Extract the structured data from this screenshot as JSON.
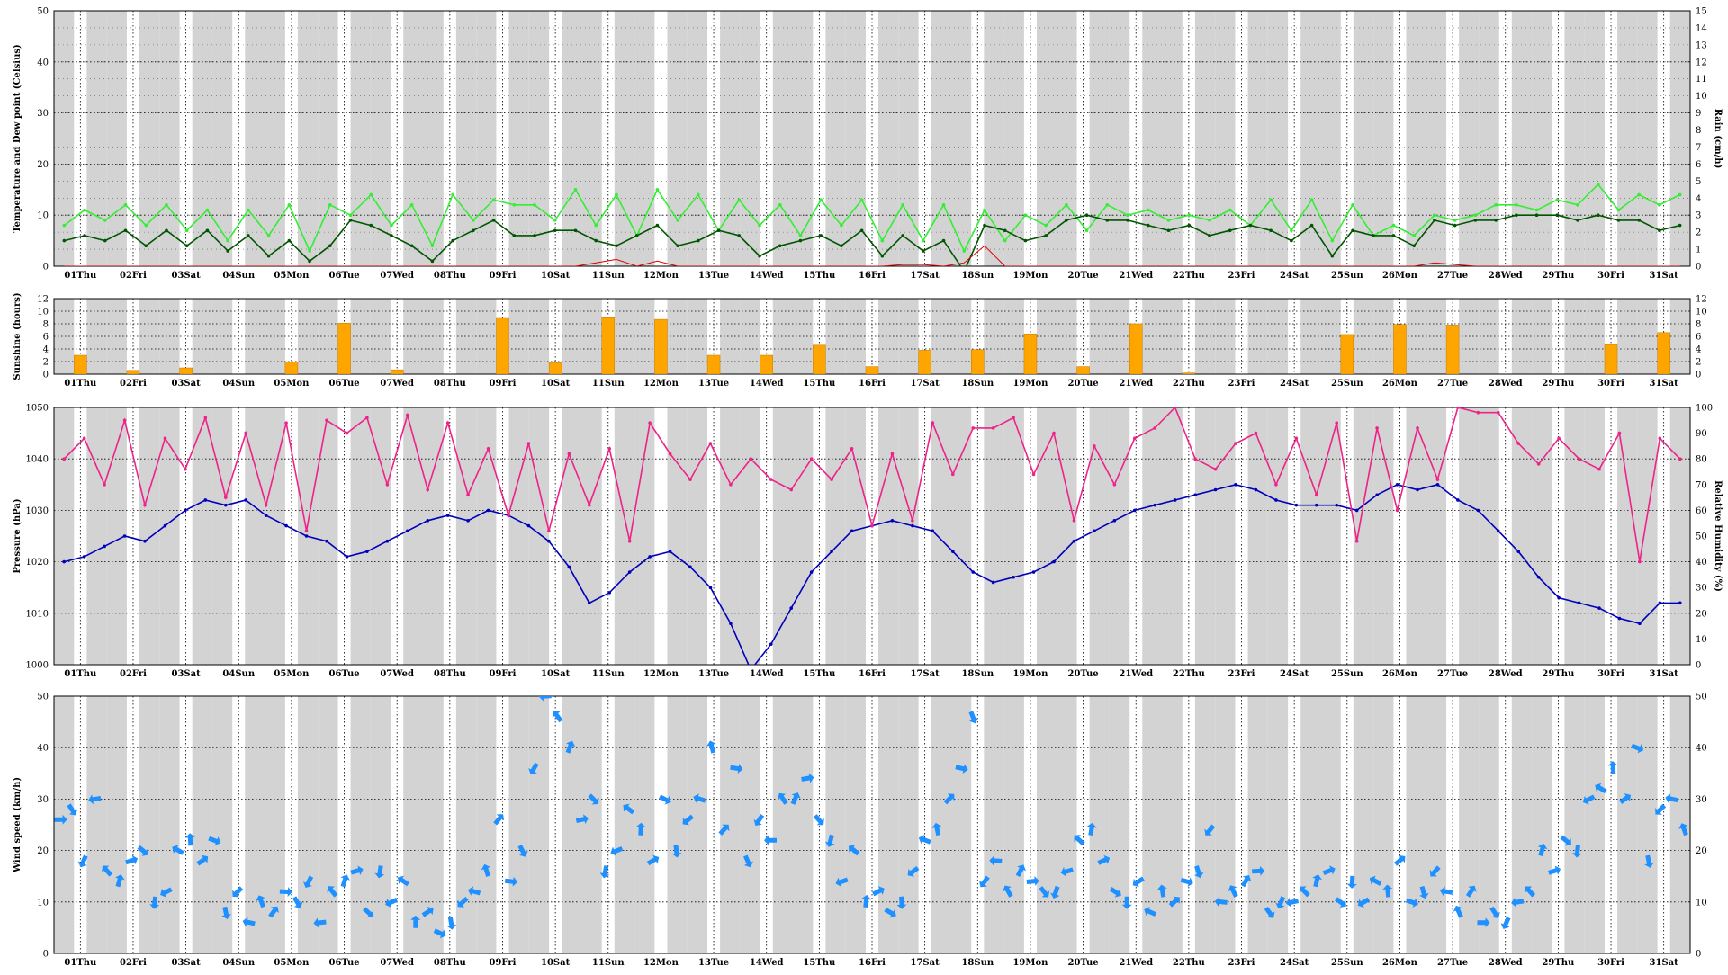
{
  "days": [
    "01Thu",
    "02Fri",
    "03Sat",
    "04Sun",
    "05Mon",
    "06Tue",
    "07Wed",
    "08Thu",
    "09Fri",
    "10Sat",
    "11Sun",
    "12Mon",
    "13Tue",
    "14Wed",
    "15Thu",
    "16Fri",
    "17Sat",
    "18Sun",
    "19Mon",
    "20Tue",
    "21Wed",
    "22Thu",
    "23Fri",
    "24Sat",
    "25Sun",
    "26Mon",
    "27Tue",
    "28Wed",
    "29Thu",
    "30Fri",
    "31Sat"
  ],
  "colors": {
    "temperature": "#33ee33",
    "dewpoint": "#005500",
    "rain": "#dd0000",
    "sunshine": "#ffa500",
    "humidity": "#ee2288",
    "pressure": "#0000bb",
    "wind": "#1e90ff",
    "night_band": "#d3d3d3"
  },
  "chart_data": [
    {
      "type": "line",
      "ylabel": "Temperature and Dew point (Celsius)",
      "y2label": "Rain (cm/h)",
      "ylim": [
        0,
        50
      ],
      "y2lim": [
        0,
        15
      ],
      "yticks": [
        "0",
        "10",
        "20",
        "30",
        "40",
        "50"
      ],
      "y2ticks": [
        "0",
        "1",
        "2",
        "3",
        "4",
        "5",
        "6",
        "7",
        "8",
        "9",
        "10",
        "11",
        "12",
        "13",
        "14",
        "15"
      ],
      "x_categories_ref": "days",
      "series": [
        {
          "key": "temperature",
          "values": [
            8,
            11,
            9,
            12,
            8,
            12,
            7,
            11,
            5,
            11,
            6,
            12,
            3,
            12,
            10,
            14,
            8,
            12,
            4,
            14,
            9,
            13,
            12,
            12,
            9,
            15,
            8,
            14,
            6,
            15,
            9,
            14,
            7,
            13,
            8,
            12,
            6,
            13,
            8,
            13,
            5,
            12,
            5,
            12,
            3,
            11,
            5,
            10,
            8,
            12,
            7,
            12,
            10,
            11,
            9,
            10,
            9,
            11,
            8,
            13,
            7,
            13,
            5,
            12,
            6,
            8,
            6,
            10,
            9,
            10,
            12,
            12,
            11,
            13,
            12,
            16,
            11,
            14,
            12,
            14
          ]
        },
        {
          "key": "dewpoint",
          "values": [
            5,
            6,
            5,
            7,
            4,
            7,
            4,
            7,
            3,
            6,
            2,
            5,
            1,
            4,
            9,
            8,
            6,
            4,
            1,
            5,
            7,
            9,
            6,
            6,
            7,
            7,
            5,
            4,
            6,
            8,
            4,
            5,
            7,
            6,
            2,
            4,
            5,
            6,
            4,
            7,
            2,
            6,
            3,
            5,
            -1,
            8,
            7,
            5,
            6,
            9,
            10,
            9,
            9,
            8,
            7,
            8,
            6,
            7,
            8,
            7,
            5,
            8,
            2,
            7,
            6,
            6,
            4,
            9,
            8,
            9,
            9,
            10,
            10,
            10,
            9,
            10,
            9,
            9,
            7,
            8
          ]
        },
        {
          "key": "rain",
          "values": [
            0,
            0,
            0,
            0,
            0,
            0,
            0,
            0,
            0,
            0,
            0,
            0,
            0,
            0,
            0,
            0,
            0,
            0,
            0,
            0,
            0,
            0,
            0,
            0,
            0,
            0,
            0.2,
            0.4,
            0,
            0.3,
            0,
            0,
            0,
            0,
            0,
            0,
            0,
            0,
            0,
            0,
            0,
            0.1,
            0.1,
            0,
            0.2,
            1.2,
            0,
            0,
            0,
            0,
            0,
            0,
            0,
            0,
            0,
            0,
            0,
            0,
            0,
            0,
            0,
            0,
            0,
            0,
            0,
            0,
            0,
            0.2,
            0.1,
            0,
            0,
            0,
            0,
            0,
            0,
            0,
            0,
            0,
            0,
            0
          ]
        }
      ]
    },
    {
      "type": "bar",
      "ylabel": "Sunshine (hours)",
      "ylim": [
        0,
        12
      ],
      "yticks": [
        "0",
        "2",
        "4",
        "6",
        "8",
        "10",
        "12"
      ],
      "y2ticks": [
        "0",
        "2",
        "4",
        "6",
        "8",
        "10",
        "12"
      ],
      "x_categories_ref": "days",
      "values": [
        3.0,
        0.6,
        1.0,
        0,
        1.9,
        8.1,
        0.7,
        0,
        9.0,
        1.8,
        9.1,
        8.7,
        3.0,
        3.0,
        4.6,
        1.2,
        3.8,
        3.9,
        6.4,
        1.2,
        8.0,
        0.2,
        0,
        0,
        6.3,
        7.9,
        7.8,
        0,
        0,
        4.7,
        6.6
      ]
    },
    {
      "type": "line",
      "ylabel": "Pressure (hPa)",
      "y2label": "Relative Humidity (%)",
      "ylim": [
        1000,
        1050
      ],
      "y2lim": [
        0,
        100
      ],
      "yticks": [
        "1000",
        "1010",
        "1020",
        "1030",
        "1040",
        "1050"
      ],
      "y2ticks": [
        "0",
        "10",
        "20",
        "30",
        "40",
        "50",
        "60",
        "70",
        "80",
        "90",
        "100"
      ],
      "x_categories_ref": "days",
      "series": [
        {
          "key": "pressure",
          "values": [
            1020,
            1021,
            1023,
            1025,
            1024,
            1027,
            1030,
            1032,
            1031,
            1032,
            1029,
            1027,
            1025,
            1024,
            1021,
            1022,
            1024,
            1026,
            1028,
            1029,
            1028,
            1030,
            1029,
            1027,
            1024,
            1019,
            1012,
            1014,
            1018,
            1021,
            1022,
            1019,
            1015,
            1008,
            999,
            1004,
            1011,
            1018,
            1022,
            1026,
            1027,
            1028,
            1027,
            1026,
            1022,
            1018,
            1016,
            1017,
            1018,
            1020,
            1024,
            1026,
            1028,
            1030,
            1031,
            1032,
            1033,
            1034,
            1035,
            1034,
            1032,
            1031,
            1031,
            1031,
            1030,
            1033,
            1035,
            1034,
            1035,
            1032,
            1030,
            1026,
            1022,
            1017,
            1013,
            1012,
            1011,
            1009,
            1008,
            1012,
            1012
          ]
        },
        {
          "key": "humidity",
          "values": [
            80,
            88,
            70,
            95,
            62,
            88,
            76,
            96,
            65,
            90,
            62,
            94,
            52,
            95,
            90,
            96,
            70,
            97,
            68,
            94,
            66,
            84,
            58,
            86,
            52,
            82,
            62,
            84,
            48,
            94,
            82,
            72,
            86,
            70,
            80,
            72,
            68,
            80,
            72,
            84,
            54,
            82,
            56,
            94,
            74,
            92,
            92,
            96,
            74,
            90,
            56,
            85,
            70,
            88,
            92,
            100,
            80,
            76,
            86,
            90,
            70,
            88,
            66,
            94,
            48,
            92,
            60,
            92,
            72,
            100,
            98,
            98,
            86,
            78,
            88,
            80,
            76,
            90,
            40,
            88,
            80
          ]
        },
        {
          "key": "wind_unused",
          "values": []
        }
      ]
    },
    {
      "type": "scatter",
      "ylabel": "Wind speed (km/h)",
      "ylim": [
        0,
        50
      ],
      "yticks": [
        "0",
        "10",
        "20",
        "30",
        "40",
        "50"
      ],
      "y2ticks": [
        "0",
        "10",
        "20",
        "30",
        "40",
        "50"
      ],
      "x_categories_ref": "days",
      "values": [
        26,
        28,
        18,
        30,
        16,
        14,
        18,
        20,
        10,
        12,
        20,
        22,
        18,
        22,
        8,
        12,
        6,
        10,
        8,
        12,
        10,
        14,
        6,
        12,
        14,
        16,
        8,
        16,
        10,
        14,
        6,
        8,
        4,
        6,
        10,
        12,
        16,
        26,
        14,
        20,
        36,
        50,
        46,
        40,
        26,
        30,
        16,
        20,
        28,
        24,
        18,
        30,
        20,
        26,
        30,
        40,
        24,
        36,
        18,
        26,
        22,
        30,
        30,
        34,
        26,
        22,
        14,
        20,
        10,
        12,
        8,
        10,
        16,
        22,
        24,
        30,
        36,
        46,
        14,
        18,
        12,
        16,
        14,
        12,
        12,
        16,
        22,
        24,
        18,
        12,
        10,
        14,
        8,
        12,
        10,
        14,
        16,
        24,
        10,
        12,
        14,
        16,
        8,
        10,
        10,
        12,
        14,
        16,
        10,
        14,
        10,
        14,
        12,
        18,
        10,
        12,
        16,
        12,
        8,
        12,
        6,
        8,
        6,
        10,
        12,
        20,
        16,
        22,
        20,
        30,
        32,
        36,
        30,
        40,
        18,
        28,
        30,
        24
      ]
    }
  ]
}
